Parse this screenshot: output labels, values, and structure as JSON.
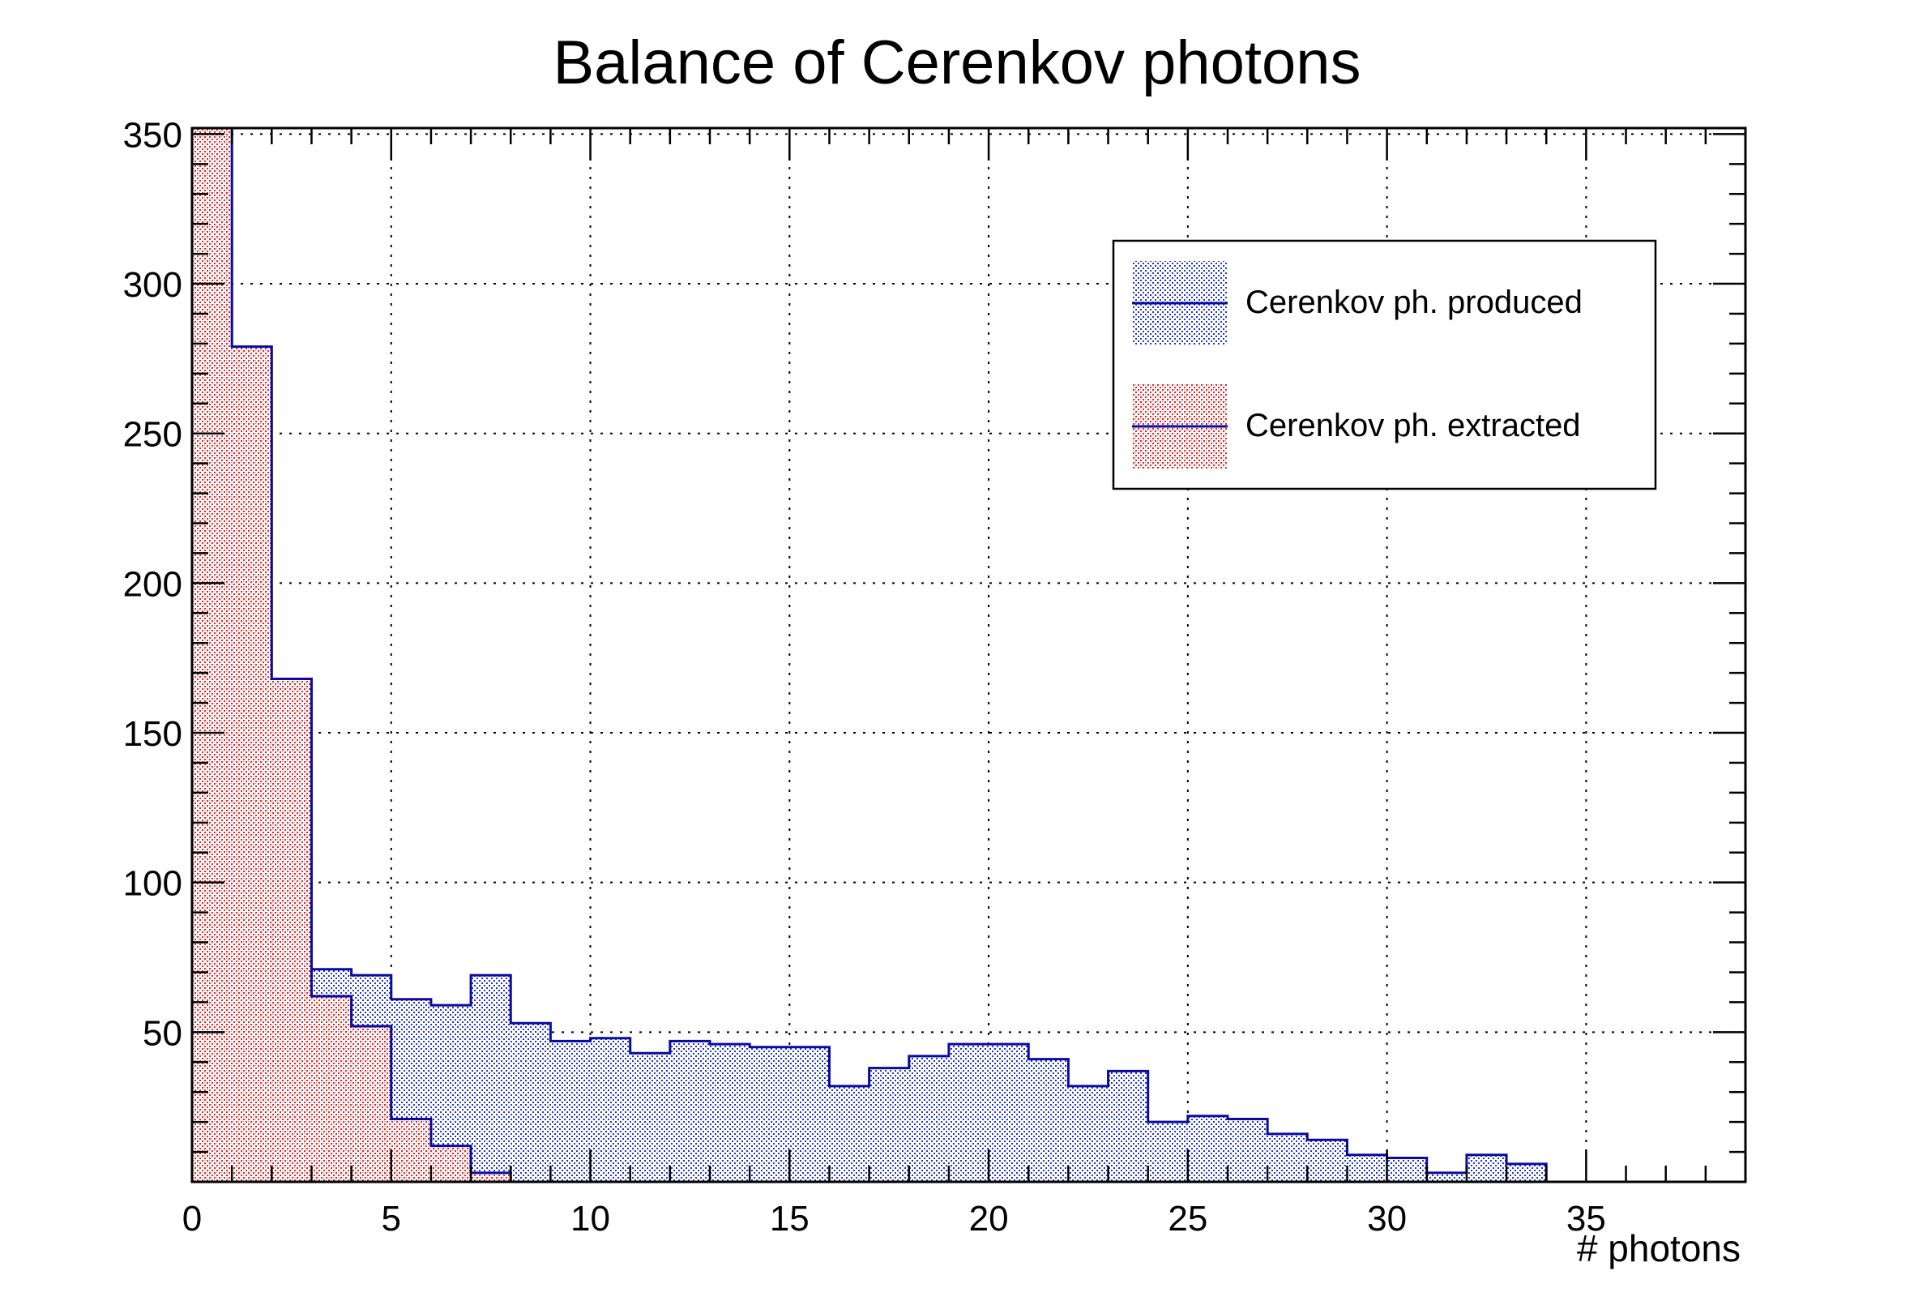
{
  "chart_data": {
    "type": "histogram",
    "title": "Balance of Cerenkov photons",
    "xlabel": "# photons",
    "ylabel": "",
    "xlim": [
      0,
      39
    ],
    "ylim": [
      0,
      350
    ],
    "bin_width": 1,
    "x_ticks": [
      "0",
      "5",
      "10",
      "15",
      "20",
      "25",
      "30",
      "35"
    ],
    "y_ticks": [
      "50",
      "100",
      "150",
      "200",
      "250",
      "300",
      "350"
    ],
    "grid": true,
    "legend_position": "top-right",
    "colors": {
      "produced_line": "#0a0aa0",
      "produced_fill": "#2a3fd0",
      "extracted_line": "#0a0aa0",
      "extracted_fill": "#d93a3a"
    },
    "series": [
      {
        "name": "Cerenkov ph. produced",
        "bins_start": 0,
        "values": [
          352,
          94,
          70,
          71,
          69,
          61,
          59,
          69,
          53,
          47,
          48,
          43,
          47,
          46,
          45,
          45,
          32,
          38,
          42,
          46,
          46,
          41,
          32,
          37,
          20,
          22,
          21,
          16,
          14,
          9,
          8,
          3,
          9,
          6,
          0,
          0,
          0,
          0,
          0
        ]
      },
      {
        "name": "Cerenkov ph. extracted",
        "bins_start": 0,
        "values": [
          352,
          279,
          168,
          62,
          52,
          21,
          12,
          3,
          0,
          0,
          0,
          0,
          0,
          0,
          0,
          0,
          0,
          0,
          0,
          0,
          0,
          0,
          0,
          0,
          0,
          0,
          0,
          0,
          0,
          0,
          0,
          0,
          0,
          0,
          0,
          0,
          0,
          0,
          0
        ]
      }
    ]
  }
}
